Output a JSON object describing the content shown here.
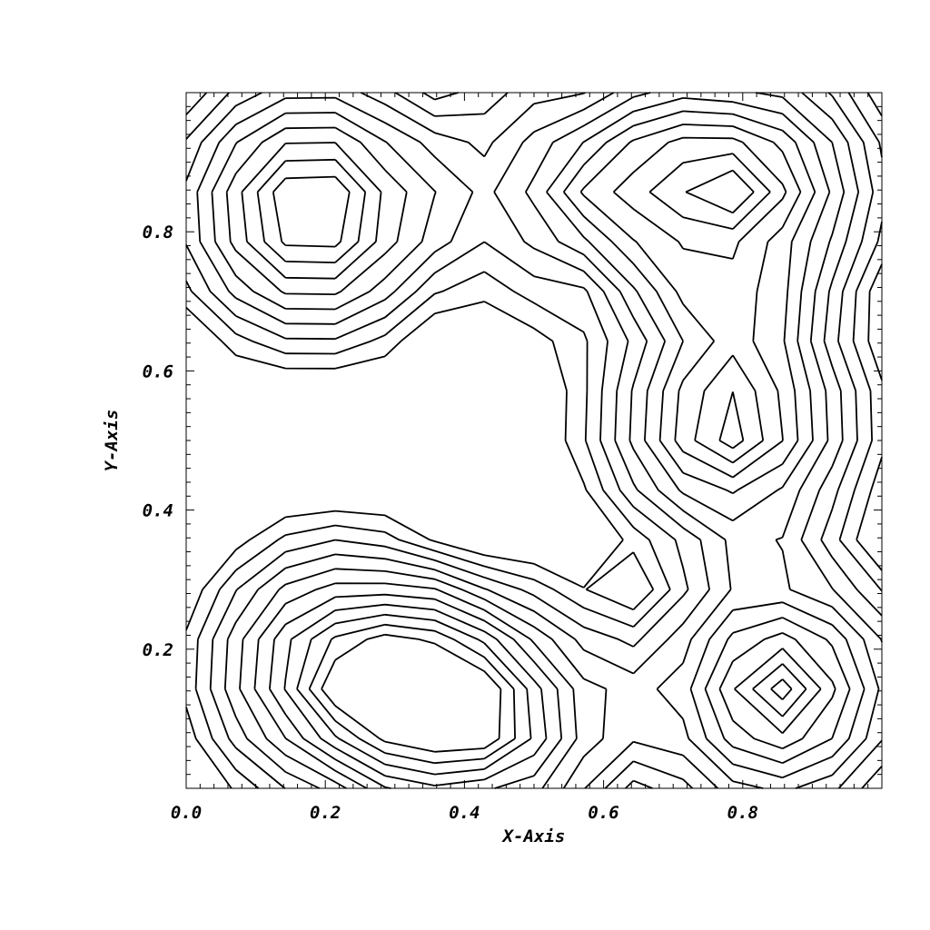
{
  "chart_data": {
    "type": "contour",
    "title": "",
    "xlabel": "X-Axis",
    "ylabel": "Y-Axis",
    "xlim": [
      0.0,
      1.0
    ],
    "ylim": [
      0.0,
      1.0
    ],
    "x_ticks": [
      0.0,
      0.2,
      0.4,
      0.6,
      0.8
    ],
    "x_tick_labels": [
      "0.0",
      "0.2",
      "0.4",
      "0.6",
      "0.8"
    ],
    "y_ticks": [
      0.2,
      0.4,
      0.6,
      0.8
    ],
    "y_tick_labels": [
      "0.2",
      "0.4",
      "0.6",
      "0.8"
    ],
    "grid": false,
    "legend": "none",
    "line_color": "#000000",
    "field": {
      "description": "Sum of signed peaks; contour lines drawn as unlabeled black polylines",
      "peaks": [
        {
          "x": 0.18,
          "y": 0.83,
          "height": 1.0
        },
        {
          "x": 0.8,
          "y": 0.86,
          "height": 1.0
        },
        {
          "x": 0.78,
          "y": 0.53,
          "height": 1.0
        },
        {
          "x": 0.22,
          "y": 0.17,
          "height": 1.0
        },
        {
          "x": 0.44,
          "y": 0.1,
          "height": 1.0
        },
        {
          "x": 0.85,
          "y": 0.14,
          "height": 1.0
        },
        {
          "x": 0.56,
          "y": 0.86,
          "height": 0.6
        }
      ],
      "levels": [
        0.12,
        0.2,
        0.28,
        0.36,
        0.44,
        0.52,
        0.6,
        0.68,
        0.76,
        0.84,
        0.92
      ]
    }
  }
}
